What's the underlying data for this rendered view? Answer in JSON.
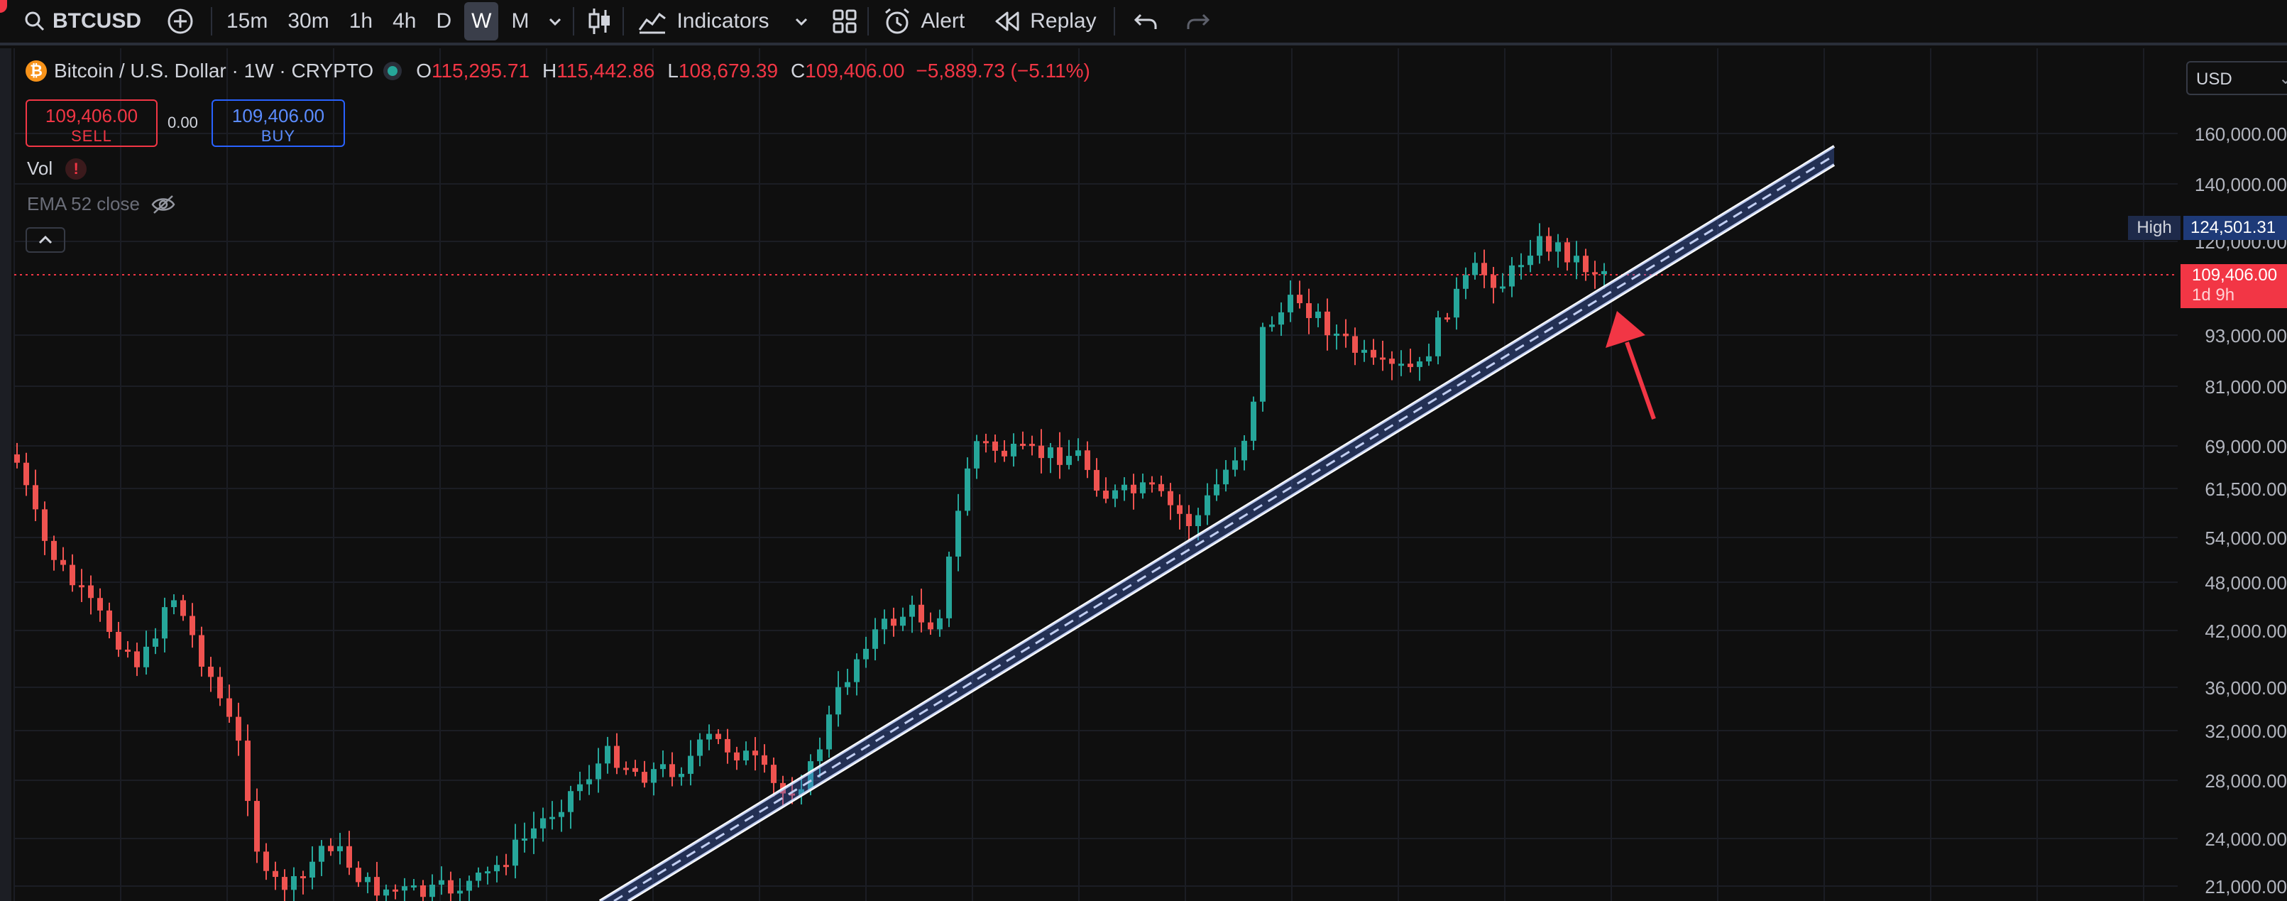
{
  "toolbar": {
    "symbol": "BTCUSD",
    "intervals": [
      "15m",
      "30m",
      "1h",
      "4h",
      "D",
      "W",
      "M"
    ],
    "active_interval": "W",
    "indicators_label": "Indicators",
    "alert_label": "Alert",
    "replay_label": "Replay"
  },
  "legend": {
    "title": "Bitcoin / U.S. Dollar · 1W · CRYPTO",
    "o_label": "O",
    "o_value": "115,295.71",
    "h_label": "H",
    "h_value": "115,442.86",
    "l_label": "L",
    "l_value": "108,679.39",
    "c_label": "C",
    "c_value": "109,406.00",
    "change": "−5,889.73 (−5.11%)"
  },
  "trade": {
    "sell_price": "109,406.00",
    "sell_label": "SELL",
    "spread": "0.00",
    "buy_price": "109,406.00",
    "buy_label": "BUY"
  },
  "indicators": {
    "vol_label": "Vol",
    "ema_label": "EMA 52 close"
  },
  "price_scale": {
    "currency": "USD",
    "labels": [
      "160,000.00",
      "140,000.00",
      "120,000.00",
      "93,000.00",
      "81,000.00",
      "69,000.00",
      "61,500.00",
      "54,000.00",
      "48,000.00",
      "42,000.00",
      "36,000.00",
      "32,000.00",
      "28,000.00",
      "24,000.00",
      "21,000.00"
    ],
    "high_label": "High",
    "high_value": "124,501.31",
    "current_price": "109,406.00",
    "countdown": "1d 9h"
  },
  "colors": {
    "up": "#26a69a",
    "down": "#ef5350",
    "accent": "#f23645",
    "buy": "#2962ff"
  }
}
